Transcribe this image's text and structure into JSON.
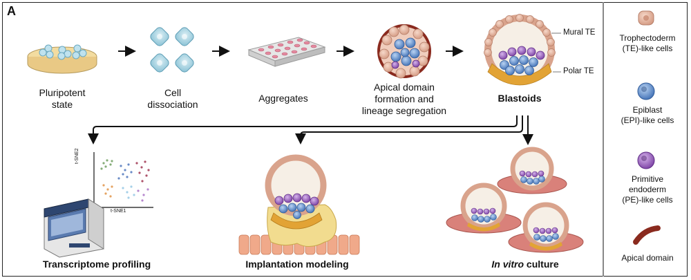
{
  "panel": {
    "letter": "A"
  },
  "stages": [
    {
      "id": "pluripotent",
      "line1": "Pluripotent",
      "line2": "state"
    },
    {
      "id": "dissociation",
      "line1": "Cell",
      "line2": "dissociation"
    },
    {
      "id": "aggregates",
      "line1": "Aggregates"
    },
    {
      "id": "apical",
      "line1": "Apical domain",
      "line2": "formation and",
      "line3": "lineage segregation"
    },
    {
      "id": "blastoids",
      "line1": "Blastoids"
    }
  ],
  "blastoid_annotations": {
    "mural": "Mural TE",
    "polar": "Polar TE"
  },
  "applications": [
    {
      "id": "transcriptome",
      "label": "Transcriptome profiling"
    },
    {
      "id": "implantation",
      "label": "Implantation modeling"
    },
    {
      "id": "invitro",
      "label_italic": "In vitro",
      "label_rest": " culture"
    }
  ],
  "tsne": {
    "y_axis": "t-SNE2",
    "x_axis": "t-SNE1"
  },
  "legend": [
    {
      "id": "te",
      "line1": "Trophectoderm",
      "line2": "(TE)-like cells",
      "color": "#d9a38c"
    },
    {
      "id": "epi",
      "line1": "Epiblast",
      "line2": "(EPI)-like cells",
      "color": "#4f7fc4"
    },
    {
      "id": "pe",
      "line1": "Primitive",
      "line2": "endoderm",
      "line3": "(PE)-like cells",
      "color": "#8a4fb0"
    },
    {
      "id": "apical",
      "line1": "Apical domain",
      "color": "#8a2a1e"
    }
  ],
  "colors": {
    "te": "#e7b7a2",
    "epi": "#5b8fd0",
    "pe": "#8e58b8",
    "apical": "#8a2a1e",
    "polar": "#e2a335"
  }
}
